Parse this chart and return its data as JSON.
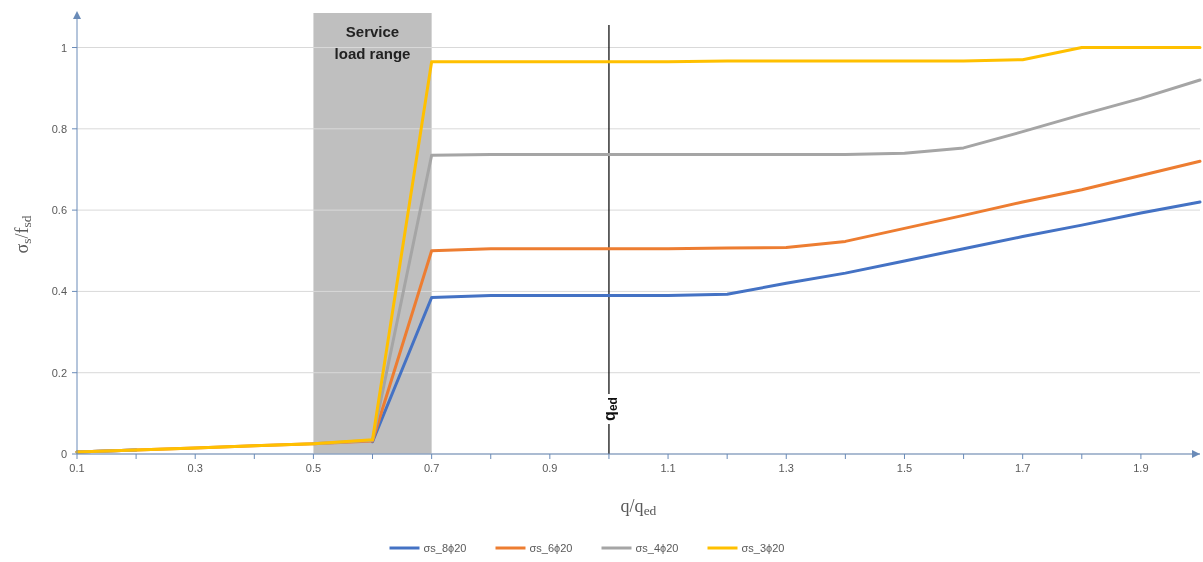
{
  "chart_data": {
    "type": "line",
    "xlabel": "q/q$_{ed}$",
    "ylabel": "σ$_{s}$/f$_{sd}$",
    "x": [
      0.1,
      0.2,
      0.3,
      0.4,
      0.5,
      0.6,
      0.7,
      0.8,
      0.9,
      1.0,
      1.1,
      1.2,
      1.3,
      1.4,
      1.5,
      1.6,
      1.7,
      1.8,
      1.9,
      2.0
    ],
    "series": [
      {
        "name": "σs_8ϕ20",
        "color": "#4472c4",
        "values": [
          0.005,
          0.01,
          null,
          null,
          null,
          0.03,
          0.385,
          0.39,
          0.39,
          0.39,
          0.39,
          0.393,
          0.42,
          0.445,
          0.475,
          0.505,
          0.535,
          0.563,
          0.593,
          0.62
        ]
      },
      {
        "name": "σs_6ϕ20",
        "color": "#ed7d31",
        "values": [
          0.005,
          0.01,
          0.015,
          0.02,
          0.025,
          0.032,
          0.5,
          0.505,
          0.505,
          0.505,
          0.505,
          0.507,
          0.508,
          0.523,
          0.555,
          0.587,
          0.62,
          0.65,
          0.685,
          0.72
        ]
      },
      {
        "name": "σs_4ϕ20",
        "color": "#a5a5a5",
        "values": [
          0.005,
          0.01,
          null,
          null,
          0.025,
          0.034,
          0.735,
          0.737,
          0.737,
          0.737,
          0.737,
          0.737,
          0.737,
          0.737,
          0.74,
          0.753,
          0.793,
          0.835,
          0.875,
          0.92
        ]
      },
      {
        "name": "σs_3ϕ20",
        "color": "#ffc000",
        "values": [
          0.005,
          0.01,
          0.015,
          0.02,
          0.025,
          0.035,
          0.965,
          0.965,
          0.965,
          0.965,
          0.965,
          0.967,
          0.967,
          0.967,
          0.967,
          0.967,
          0.97,
          1.0,
          1.0,
          1.0
        ]
      }
    ],
    "xlim": [
      0.1,
      2.0
    ],
    "ylim": [
      0,
      1.08
    ],
    "xticks": [
      0.1,
      {
        "value": 0.2,
        "label": null
      },
      0.3,
      {
        "value": 0.4,
        "label": null
      },
      0.5,
      {
        "value": 0.6,
        "label": null
      },
      0.7,
      {
        "value": 0.8,
        "label": null
      },
      0.9,
      {
        "value": 1.0,
        "label": null
      },
      1.1,
      {
        "value": 1.2,
        "label": null
      },
      1.3,
      {
        "value": 1.4,
        "label": null
      },
      1.5,
      {
        "value": 1.6,
        "label": null
      },
      1.7,
      {
        "value": 1.8,
        "label": null
      },
      1.9
    ],
    "yticks": [
      0,
      0.2,
      0.4,
      0.6,
      0.8,
      1
    ],
    "grid": "y",
    "legend": "bottom",
    "marker": "none",
    "line_style": "solid",
    "bands": [
      {
        "axis": "x",
        "from": 0.5,
        "to": 0.7,
        "label": "Service load range",
        "color": "#bfbfbf"
      }
    ],
    "ref_lines": [
      {
        "axis": "x",
        "value": 1.0,
        "label": "q$_{ed}$",
        "color": "#000000"
      }
    ]
  }
}
